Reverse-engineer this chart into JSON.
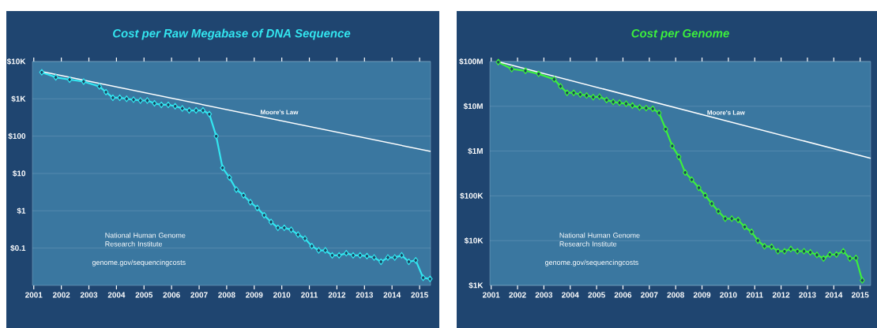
{
  "chart_data": [
    {
      "type": "line",
      "title": "Cost per Raw Megabase of DNA Sequence",
      "log": "y",
      "grid": "y",
      "marker": "diamond",
      "xlim": [
        2001.45,
        2015.9
      ],
      "ylim": [
        0.01,
        10000
      ],
      "xticks": [
        {
          "value": 2001.5,
          "label": "2001"
        },
        {
          "value": 2002.5,
          "label": "2002"
        },
        {
          "value": 2003.5,
          "label": "2003"
        },
        {
          "value": 2004.5,
          "label": "2004"
        },
        {
          "value": 2005.5,
          "label": "2005"
        },
        {
          "value": 2006.5,
          "label": "2006"
        },
        {
          "value": 2007.5,
          "label": "2007"
        },
        {
          "value": 2008.5,
          "label": "2008"
        },
        {
          "value": 2009.5,
          "label": "2009"
        },
        {
          "value": 2010.5,
          "label": "2010"
        },
        {
          "value": 2011.5,
          "label": "2011"
        },
        {
          "value": 2012.5,
          "label": "2012"
        },
        {
          "value": 2013.5,
          "label": "2013"
        },
        {
          "value": 2014.5,
          "label": "2014"
        },
        {
          "value": 2015.5,
          "label": "2015"
        }
      ],
      "yticks": [
        {
          "value": 0.1,
          "label": "$0.1"
        },
        {
          "value": 1,
          "label": "$1"
        },
        {
          "value": 10,
          "label": "$10"
        },
        {
          "value": 100,
          "label": "$100"
        },
        {
          "value": 1000,
          "label": "$1K"
        },
        {
          "value": 10000,
          "label": "$10K"
        }
      ],
      "x": [
        2001.79,
        2002.3,
        2002.8,
        2003.31,
        2003.88,
        2004.12,
        2004.37,
        2004.62,
        2004.87,
        2005.12,
        2005.37,
        2005.62,
        2005.88,
        2006.13,
        2006.38,
        2006.63,
        2006.89,
        2007.14,
        2007.39,
        2007.64,
        2007.87,
        2008.12,
        2008.35,
        2008.6,
        2008.85,
        2009.11,
        2009.36,
        2009.61,
        2009.86,
        2010.11,
        2010.36,
        2010.59,
        2010.84,
        2011.09,
        2011.34,
        2011.59,
        2011.84,
        2012.08,
        2012.33,
        2012.58,
        2012.84,
        2013.09,
        2013.34,
        2013.59,
        2013.85,
        2014.1,
        2014.35,
        2014.6,
        2014.85,
        2015.11,
        2015.36,
        2015.63,
        2015.88
      ],
      "series": [
        {
          "color": "#33e6f0",
          "values": [
            5150,
            3770,
            3270,
            2900,
            2150,
            1510,
            1070,
            1070,
            1000,
            950,
            900,
            900,
            757,
            690,
            690,
            635,
            552,
            489,
            489,
            489,
            390,
            100,
            14.2,
            7.8,
            3.7,
            2.6,
            1.7,
            1.19,
            0.76,
            0.5,
            0.35,
            0.35,
            0.31,
            0.23,
            0.18,
            0.113,
            0.087,
            0.087,
            0.064,
            0.064,
            0.073,
            0.064,
            0.064,
            0.061,
            0.056,
            0.043,
            0.056,
            0.056,
            0.064,
            0.043,
            0.047,
            0.016,
            0.015
          ]
        },
        {
          "name": "Moore's Law",
          "color": "#ffffff",
          "marker": "none",
          "x": [
            2001.79,
            2015.9
          ],
          "values": [
            5370,
            39
          ]
        }
      ],
      "annotations": [
        "National Human Genome Research Institute",
        "genome.gov/sequencingcosts"
      ]
    },
    {
      "type": "line",
      "title": "Cost per Genome",
      "log": "y",
      "grid": "y",
      "marker": "diamond",
      "xlim": [
        2001.45,
        2015.9
      ],
      "ylim": [
        1000,
        100000000
      ],
      "xticks": [
        {
          "value": 2001.5,
          "label": "2001"
        },
        {
          "value": 2002.5,
          "label": "2002"
        },
        {
          "value": 2003.5,
          "label": "2003"
        },
        {
          "value": 2004.5,
          "label": "2004"
        },
        {
          "value": 2005.5,
          "label": "2005"
        },
        {
          "value": 2006.5,
          "label": "2006"
        },
        {
          "value": 2007.5,
          "label": "2007"
        },
        {
          "value": 2008.5,
          "label": "2008"
        },
        {
          "value": 2009.5,
          "label": "2009"
        },
        {
          "value": 2010.5,
          "label": "2010"
        },
        {
          "value": 2011.5,
          "label": "2011"
        },
        {
          "value": 2012.5,
          "label": "2012"
        },
        {
          "value": 2013.5,
          "label": "2013"
        },
        {
          "value": 2014.5,
          "label": "2014"
        },
        {
          "value": 2015.5,
          "label": "2015"
        }
      ],
      "yticks": [
        {
          "value": 1000,
          "label": "$1K"
        },
        {
          "value": 10000,
          "label": "$10K"
        },
        {
          "value": 100000,
          "label": "$100K"
        },
        {
          "value": 1000000,
          "label": "$1M"
        },
        {
          "value": 10000000,
          "label": "$10M"
        },
        {
          "value": 100000000,
          "label": "$100M"
        }
      ],
      "x": [
        2001.77,
        2002.28,
        2002.8,
        2003.3,
        2003.89,
        2004.13,
        2004.38,
        2004.63,
        2004.88,
        2005.12,
        2005.37,
        2005.61,
        2005.88,
        2006.13,
        2006.37,
        2006.62,
        2006.86,
        2007.13,
        2007.38,
        2007.63,
        2007.87,
        2008.12,
        2008.37,
        2008.62,
        2008.86,
        2009.11,
        2009.38,
        2009.62,
        2009.87,
        2010.12,
        2010.38,
        2010.63,
        2010.87,
        2011.12,
        2011.38,
        2011.62,
        2011.87,
        2012.14,
        2012.38,
        2012.63,
        2012.87,
        2013.12,
        2013.37,
        2013.61,
        2013.86,
        2014.11,
        2014.35,
        2014.6,
        2014.86,
        2015.11,
        2015.34,
        2015.58
      ],
      "series": [
        {
          "color": "#3cf03c",
          "values": [
            97000000,
            68000000,
            62000000,
            53000000,
            40000000,
            28000000,
            20000000,
            20000000,
            18400000,
            17400000,
            16000000,
            16400000,
            13800000,
            12500000,
            12000000,
            11400000,
            10400000,
            9400000,
            9100000,
            8800000,
            7100000,
            3100000,
            1300000,
            743000,
            332000,
            230000,
            151000,
            103000,
            67000,
            45000,
            31000,
            31000,
            29000,
            20300,
            15700,
            10000,
            7500,
            7300,
            5800,
            5800,
            6500,
            5800,
            5800,
            5500,
            4800,
            4000,
            4900,
            4900,
            5800,
            4000,
            4100,
            1300
          ]
        },
        {
          "name": "Moore's Law",
          "color": "#ffffff",
          "marker": "none",
          "x": [
            2001.74,
            2015.9
          ],
          "values": [
            100000000,
            690000
          ]
        }
      ],
      "annotations": [
        "National Human Genome Research Institute",
        "genome.gov/sequencingcosts"
      ]
    }
  ]
}
